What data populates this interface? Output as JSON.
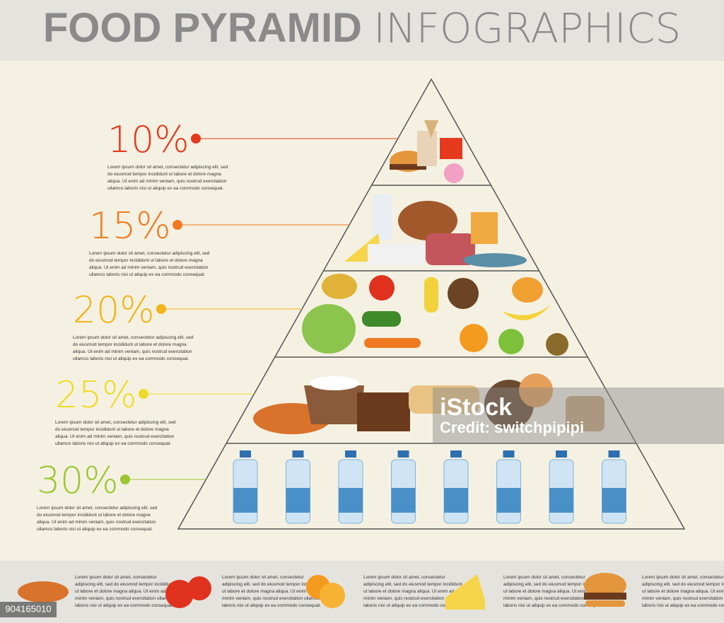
{
  "header": {
    "title_bold": "FOOD PYRAMID",
    "title_light": "INFOGRAPHICS"
  },
  "levels": [
    {
      "percent": "10%",
      "text": [
        "Lorem ipsum dolor sit amet, consectetur adipiscing elit, sed",
        "do eiusmod tempor incididunt ut labore et dolore magna",
        "aliqua. Ut enim ad minim veniam, quis nostrud exercitation",
        "ullamco laboris nisi ut aliquip ex ea commodo consequat."
      ]
    },
    {
      "percent": "15%",
      "text": [
        "Lorem ipsum dolor sit amet, consectetur adipiscing elit, sed",
        "do eiusmod tempor incididunt ut labore et dolore magna",
        "aliqua. Ut enim ad minim veniam, quis nostrud exercitation",
        "ullamco laboris nisi ut aliquip ex ea commodo consequat."
      ]
    },
    {
      "percent": "20%",
      "text": [
        "Lorem ipsum dolor sit amet, consectetur adipiscing elit, sed",
        "do eiusmod tempor incididunt ut labore et dolore magna",
        "aliqua. Ut enim ad minim veniam, quis nostrud exercitation",
        "ullamco laboris nisi ut aliquip ex ea commodo consequat."
      ]
    },
    {
      "percent": "25%",
      "text": [
        "Lorem ipsum dolor sit amet, consectetur adipiscing elit, sed",
        "do eiusmod tempor incididunt ut labore et dolore magna",
        "aliqua. Ut enim ad minim veniam, quis nostrud exercitation",
        "ullamco laboris nisi ut aliquip ex ea commodo consequat."
      ]
    },
    {
      "percent": "30%",
      "text": [
        "Lorem ipsum dolor sit amet, consectetur adipiscing elit, sed",
        "do eiusmod tempor incididunt ut labore et dolore magna",
        "aliqua. Ut enim ad minim veniam, quis nostrud exercitation",
        "ullamco laboris nisi ut aliquip ex ea commodo consequat."
      ]
    }
  ],
  "footer_items": [
    {
      "text": [
        "Lorem ipsum dolor sit amet, consectetur",
        "adipiscing elit, sed do eiusmod tempor incididunt",
        "ut labore et dolore magna aliqua. Ut enim ad",
        "minim veniam, quis nostrud exercitation ullamco",
        "laboris nisi ut aliquip ex ea commodo consequat."
      ]
    },
    {
      "text": [
        "Lorem ipsum dolor sit amet, consectetur",
        "adipiscing elit, sed do eiusmod tempor incididunt",
        "ut labore et dolore magna aliqua. Ut enim ad",
        "minim veniam, quis nostrud exercitation ullamco",
        "laboris nisi ut aliquip ex ea commodo consequat."
      ]
    },
    {
      "text": [
        "Lorem ipsum dolor sit amet, consectetur",
        "adipiscing elit, sed do eiusmod tempor incididunt",
        "ut labore et dolore magna aliqua. Ut enim ad",
        "minim veniam, quis nostrud exercitation ullamco",
        "laboris nisi ut aliquip ex ea commodo consequat."
      ]
    },
    {
      "text": [
        "Lorem ipsum dolor sit amet, consectetur",
        "adipiscing elit, sed do eiusmod tempor incididunt",
        "ut labore et dolore magna aliqua. Ut enim ad",
        "minim veniam, quis nostrud exercitation ullamco",
        "laboris nisi ut aliquip ex ea commodo consequat."
      ]
    },
    {
      "text": [
        "Lorem ipsum dolor sit amet, consectetur",
        "adipiscing elit, sed do eiusmod tempor incididunt",
        "ut labore et dolore magna aliqua. Ut enim ad",
        "minim veniam, quis nostrud exercitation ullamco",
        "laboris nisi ut aliquip ex ea commodo consequat."
      ]
    }
  ],
  "watermark": {
    "brand": "iStock",
    "credit": "Credit: switchpipipi",
    "id": "904165010"
  }
}
